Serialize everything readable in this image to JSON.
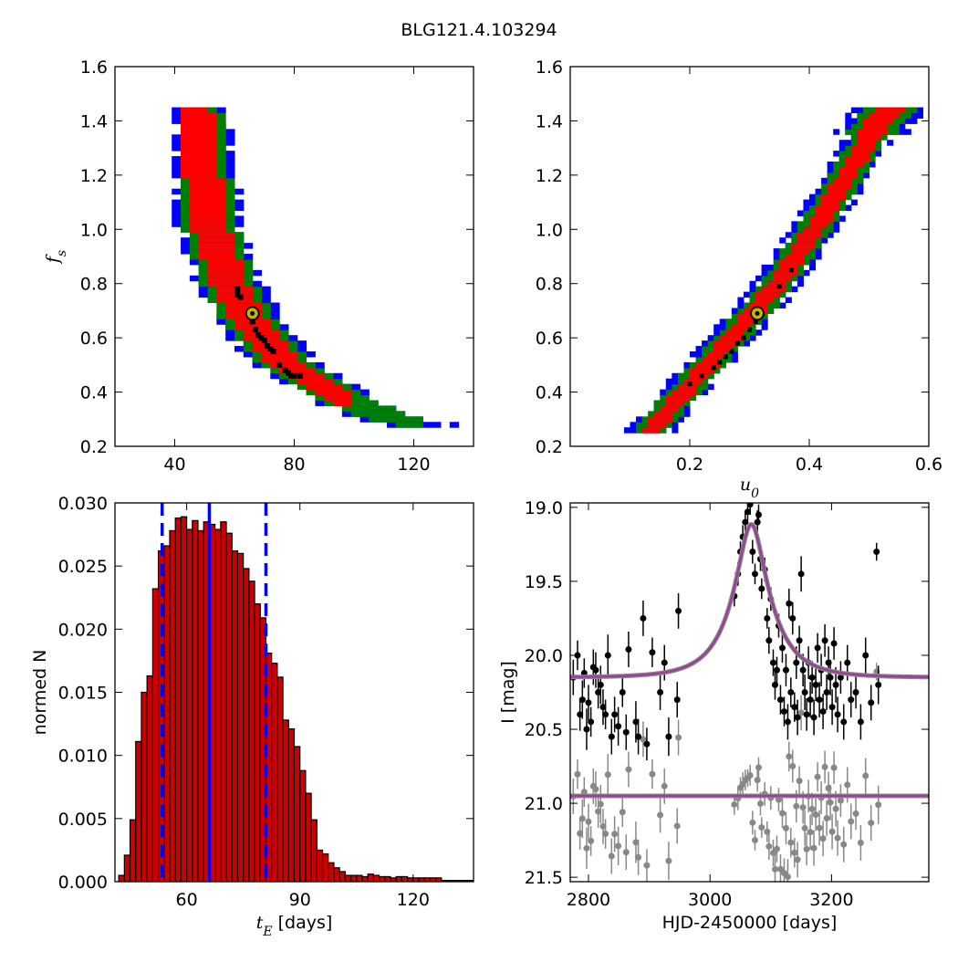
{
  "figure": {
    "title": "BLG121.4.103294"
  },
  "colors": {
    "sigma1": "#ff0000",
    "sigma2": "#008000",
    "sigma3": "#0000ff",
    "mcmc": "#000000",
    "best_fill": "#c8b400",
    "hist_fill": "#cc0000",
    "model": "#9b3f9b",
    "residual": "#888888",
    "model_outline": "#888888"
  },
  "chart_data": [
    {
      "type": "heatmap",
      "id": "tE-fs",
      "xlabel": "",
      "ylabel": "f_s",
      "xlim": [
        20,
        140
      ],
      "ylim": [
        0.2,
        1.6
      ],
      "xticks": [
        40,
        80,
        120
      ],
      "yticks": [
        0.2,
        0.4,
        0.6,
        0.8,
        1.0,
        1.2,
        1.4,
        1.6
      ],
      "xtick_labels": [
        "40",
        "80",
        "120"
      ],
      "ytick_labels": [
        "0.2",
        "0.4",
        "0.6",
        "0.8",
        "1.0",
        "1.2",
        "1.4",
        "1.6"
      ],
      "band_centerline": [
        [
          46,
          1.45
        ],
        [
          52,
          1.0
        ],
        [
          58,
          0.8
        ],
        [
          65,
          0.65
        ],
        [
          75,
          0.52
        ],
        [
          85,
          0.44
        ],
        [
          95,
          0.37
        ],
        [
          110,
          0.3
        ],
        [
          130,
          0.255
        ]
      ],
      "band_halfwidth_x": {
        "sigma1": 4.5,
        "sigma2": 7.5,
        "sigma3": 10
      },
      "band_x_extent": {
        "sigma1": [
          44,
          97
        ],
        "sigma2": [
          42,
          123
        ],
        "sigma3": [
          40,
          135
        ]
      },
      "mcmc_points": [
        [
          61,
          0.78
        ],
        [
          61,
          0.76
        ],
        [
          62,
          0.75
        ],
        [
          66,
          0.66
        ],
        [
          67,
          0.63
        ],
        [
          68,
          0.61
        ],
        [
          69,
          0.6
        ],
        [
          70,
          0.59
        ],
        [
          71,
          0.57
        ],
        [
          72,
          0.56
        ],
        [
          73,
          0.55
        ],
        [
          75,
          0.5
        ],
        [
          77,
          0.48
        ],
        [
          78,
          0.47
        ],
        [
          79,
          0.46
        ],
        [
          80,
          0.46
        ],
        [
          82,
          0.46
        ]
      ],
      "best_fit": [
        66,
        0.69
      ]
    },
    {
      "type": "heatmap",
      "id": "u0-fs",
      "xlabel": "u_0",
      "ylabel": "",
      "xlim": [
        0.0,
        0.6
      ],
      "ylim": [
        0.2,
        1.6
      ],
      "xticks": [
        0.2,
        0.4,
        0.6
      ],
      "yticks": [
        0.2,
        0.4,
        0.6,
        0.8,
        1.0,
        1.2,
        1.4,
        1.6
      ],
      "xtick_labels": [
        "0.2",
        "0.4",
        "0.6"
      ],
      "ytick_labels": [
        "0.2",
        "0.4",
        "0.6",
        "0.8",
        "1.0",
        "1.2",
        "1.4",
        "1.6"
      ],
      "band_centerline": [
        [
          0.135,
          0.25
        ],
        [
          0.2,
          0.42
        ],
        [
          0.26,
          0.57
        ],
        [
          0.31,
          0.69
        ],
        [
          0.36,
          0.83
        ],
        [
          0.41,
          1.0
        ],
        [
          0.46,
          1.18
        ],
        [
          0.51,
          1.37
        ],
        [
          0.545,
          1.45
        ]
      ],
      "band_halfwidth_x": {
        "sigma1": 0.012,
        "sigma2": 0.024,
        "sigma3": 0.036
      },
      "band_y_extent": [
        0.25,
        1.45
      ],
      "mcmc_points": [
        [
          0.2,
          0.43
        ],
        [
          0.22,
          0.46
        ],
        [
          0.24,
          0.49
        ],
        [
          0.25,
          0.51
        ],
        [
          0.26,
          0.53
        ],
        [
          0.27,
          0.55
        ],
        [
          0.28,
          0.58
        ],
        [
          0.29,
          0.6
        ],
        [
          0.3,
          0.63
        ],
        [
          0.31,
          0.66
        ],
        [
          0.35,
          0.79
        ],
        [
          0.37,
          0.85
        ]
      ],
      "best_fit": [
        0.313,
        0.69
      ]
    },
    {
      "type": "bar",
      "id": "tE-hist",
      "xlabel": "t_E [days]",
      "ylabel": "normed N",
      "xlim": [
        41,
        136
      ],
      "ylim": [
        0.0,
        0.03
      ],
      "xticks": [
        60,
        90,
        120
      ],
      "xtick_labels": [
        "60",
        "90",
        "120"
      ],
      "yticks": [
        0.0,
        0.005,
        0.01,
        0.015,
        0.02,
        0.025,
        0.03
      ],
      "ytick_labels": [
        "0.000",
        "0.005",
        "0.010",
        "0.015",
        "0.020",
        "0.025",
        "0.030"
      ],
      "bin_start": 42,
      "bin_width": 1.5,
      "values": [
        0.0005,
        0.0021,
        0.0049,
        0.0111,
        0.015,
        0.0163,
        0.0232,
        0.0262,
        0.0266,
        0.0278,
        0.0288,
        0.0289,
        0.0279,
        0.0286,
        0.0278,
        0.0285,
        0.0283,
        0.0279,
        0.0285,
        0.0276,
        0.0262,
        0.026,
        0.0248,
        0.0238,
        0.022,
        0.0209,
        0.0181,
        0.0173,
        0.0162,
        0.0128,
        0.0121,
        0.0107,
        0.0088,
        0.007,
        0.0049,
        0.0025,
        0.0022,
        0.0015,
        0.0011,
        0.0008,
        0.0005,
        0.0005,
        0.0005,
        0.0004,
        0.0006,
        0.0005,
        0.0004,
        0.0004,
        0.0003,
        0.0004,
        0.0004,
        0.0003,
        0.0003,
        0.0003,
        0.0003,
        0.0003,
        0.0003,
        0.0001,
        0.0001,
        0.0001,
        0.0001,
        0.0001,
        0.0001
      ],
      "median_line": 66,
      "interval_lines": [
        53.5,
        81
      ]
    },
    {
      "type": "scatter",
      "id": "lightcurve",
      "xlabel": "HJD-2450000 [days]",
      "ylabel": "I [mag]",
      "xlim": [
        2770,
        3360
      ],
      "ylim": [
        21.53,
        18.97
      ],
      "xticks": [
        2800,
        3000,
        3200
      ],
      "xtick_labels": [
        "2800",
        "3000",
        "3200"
      ],
      "yticks": [
        19.0,
        19.5,
        20.0,
        20.5,
        21.0,
        21.5
      ],
      "ytick_labels": [
        "19.0",
        "19.5",
        "20.0",
        "20.5",
        "21.0",
        "21.5"
      ],
      "model": {
        "t0": 3068,
        "tE": 66,
        "u0": 0.313,
        "fs": 0.69,
        "baseline_mag": 20.15
      },
      "residual_offset_mag": 20.95,
      "data_points": [
        [
          2775,
          20.15,
          0.12
        ],
        [
          2782,
          20.0,
          0.1
        ],
        [
          2786,
          20.4,
          0.11
        ],
        [
          2790,
          20.3,
          0.13
        ],
        [
          2793,
          20.12,
          0.1
        ],
        [
          2797,
          20.5,
          0.14
        ],
        [
          2800,
          20.32,
          0.12
        ],
        [
          2804,
          20.45,
          0.1
        ],
        [
          2808,
          20.08,
          0.12
        ],
        [
          2812,
          20.1,
          0.12
        ],
        [
          2816,
          20.25,
          0.11
        ],
        [
          2820,
          20.2,
          0.13
        ],
        [
          2824,
          20.35,
          0.12
        ],
        [
          2828,
          20.4,
          0.1
        ],
        [
          2832,
          20.0,
          0.14
        ],
        [
          2838,
          20.55,
          0.12
        ],
        [
          2843,
          20.4,
          0.12
        ],
        [
          2849,
          20.48,
          0.13
        ],
        [
          2856,
          20.25,
          0.1
        ],
        [
          2862,
          20.52,
          0.12
        ],
        [
          2866,
          19.96,
          0.12
        ],
        [
          2878,
          20.45,
          0.14
        ],
        [
          2882,
          20.55,
          0.12
        ],
        [
          2890,
          19.75,
          0.12
        ],
        [
          2896,
          20.6,
          0.11
        ],
        [
          2905,
          19.98,
          0.1
        ],
        [
          2918,
          20.25,
          0.12
        ],
        [
          2925,
          20.05,
          0.12
        ],
        [
          2932,
          20.55,
          0.13
        ],
        [
          2946,
          20.3,
          0.12
        ],
        [
          2948,
          19.7,
          0.12
        ],
        [
          3040,
          19.6,
          0.07
        ],
        [
          3046,
          19.45,
          0.08
        ],
        [
          3050,
          19.3,
          0.07
        ],
        [
          3054,
          19.2,
          0.08
        ],
        [
          3058,
          19.1,
          0.07
        ],
        [
          3062,
          19.03,
          0.06
        ],
        [
          3066,
          18.98,
          0.07
        ],
        [
          3070,
          19.3,
          0.08
        ],
        [
          3074,
          19.45,
          0.07
        ],
        [
          3078,
          19.1,
          0.08
        ],
        [
          3080,
          19.05,
          0.07
        ],
        [
          3083,
          19.35,
          0.08
        ],
        [
          3085,
          19.55,
          0.07
        ],
        [
          3090,
          19.42,
          0.08
        ],
        [
          3094,
          19.75,
          0.07
        ],
        [
          3097,
          19.9,
          0.09
        ],
        [
          3100,
          19.62,
          0.08
        ],
        [
          3104,
          20.05,
          0.09
        ],
        [
          3107,
          20.2,
          0.1
        ],
        [
          3110,
          20.1,
          0.09
        ],
        [
          3113,
          19.8,
          0.08
        ],
        [
          3116,
          20.3,
          0.1
        ],
        [
          3119,
          19.95,
          0.1
        ],
        [
          3122,
          20.38,
          0.1
        ],
        [
          3125,
          20.1,
          0.11
        ],
        [
          3128,
          20.45,
          0.12
        ],
        [
          3130,
          19.65,
          0.1
        ],
        [
          3133,
          20.25,
          0.1
        ],
        [
          3136,
          19.75,
          0.11
        ],
        [
          3139,
          20.35,
          0.1
        ],
        [
          3142,
          20.05,
          0.11
        ],
        [
          3144,
          20.42,
          0.12
        ],
        [
          3147,
          19.9,
          0.1
        ],
        [
          3150,
          19.45,
          0.12
        ],
        [
          3153,
          20.1,
          0.11
        ],
        [
          3156,
          20.25,
          0.12
        ],
        [
          3159,
          20.4,
          0.11
        ],
        [
          3162,
          20.05,
          0.11
        ],
        [
          3165,
          20.3,
          0.12
        ],
        [
          3168,
          20.15,
          0.11
        ],
        [
          3171,
          20.42,
          0.12
        ],
        [
          3174,
          20.2,
          0.11
        ],
        [
          3177,
          19.95,
          0.1
        ],
        [
          3180,
          20.3,
          0.12
        ],
        [
          3183,
          20.1,
          0.11
        ],
        [
          3186,
          20.38,
          0.12
        ],
        [
          3189,
          19.9,
          0.11
        ],
        [
          3192,
          20.25,
          0.12
        ],
        [
          3195,
          20.05,
          0.11
        ],
        [
          3198,
          20.15,
          0.12
        ],
        [
          3201,
          20.35,
          0.12
        ],
        [
          3204,
          19.92,
          0.11
        ],
        [
          3207,
          20.2,
          0.12
        ],
        [
          3210,
          20.4,
          0.12
        ],
        [
          3215,
          20.15,
          0.11
        ],
        [
          3220,
          20.45,
          0.12
        ],
        [
          3226,
          20.05,
          0.12
        ],
        [
          3232,
          20.3,
          0.12
        ],
        [
          3240,
          20.25,
          0.11
        ],
        [
          3248,
          20.45,
          0.12
        ],
        [
          3256,
          20.0,
          0.12
        ],
        [
          3265,
          20.32,
          0.12
        ],
        [
          3274,
          19.3,
          0.06
        ],
        [
          3277,
          20.2,
          0.13
        ]
      ]
    }
  ]
}
